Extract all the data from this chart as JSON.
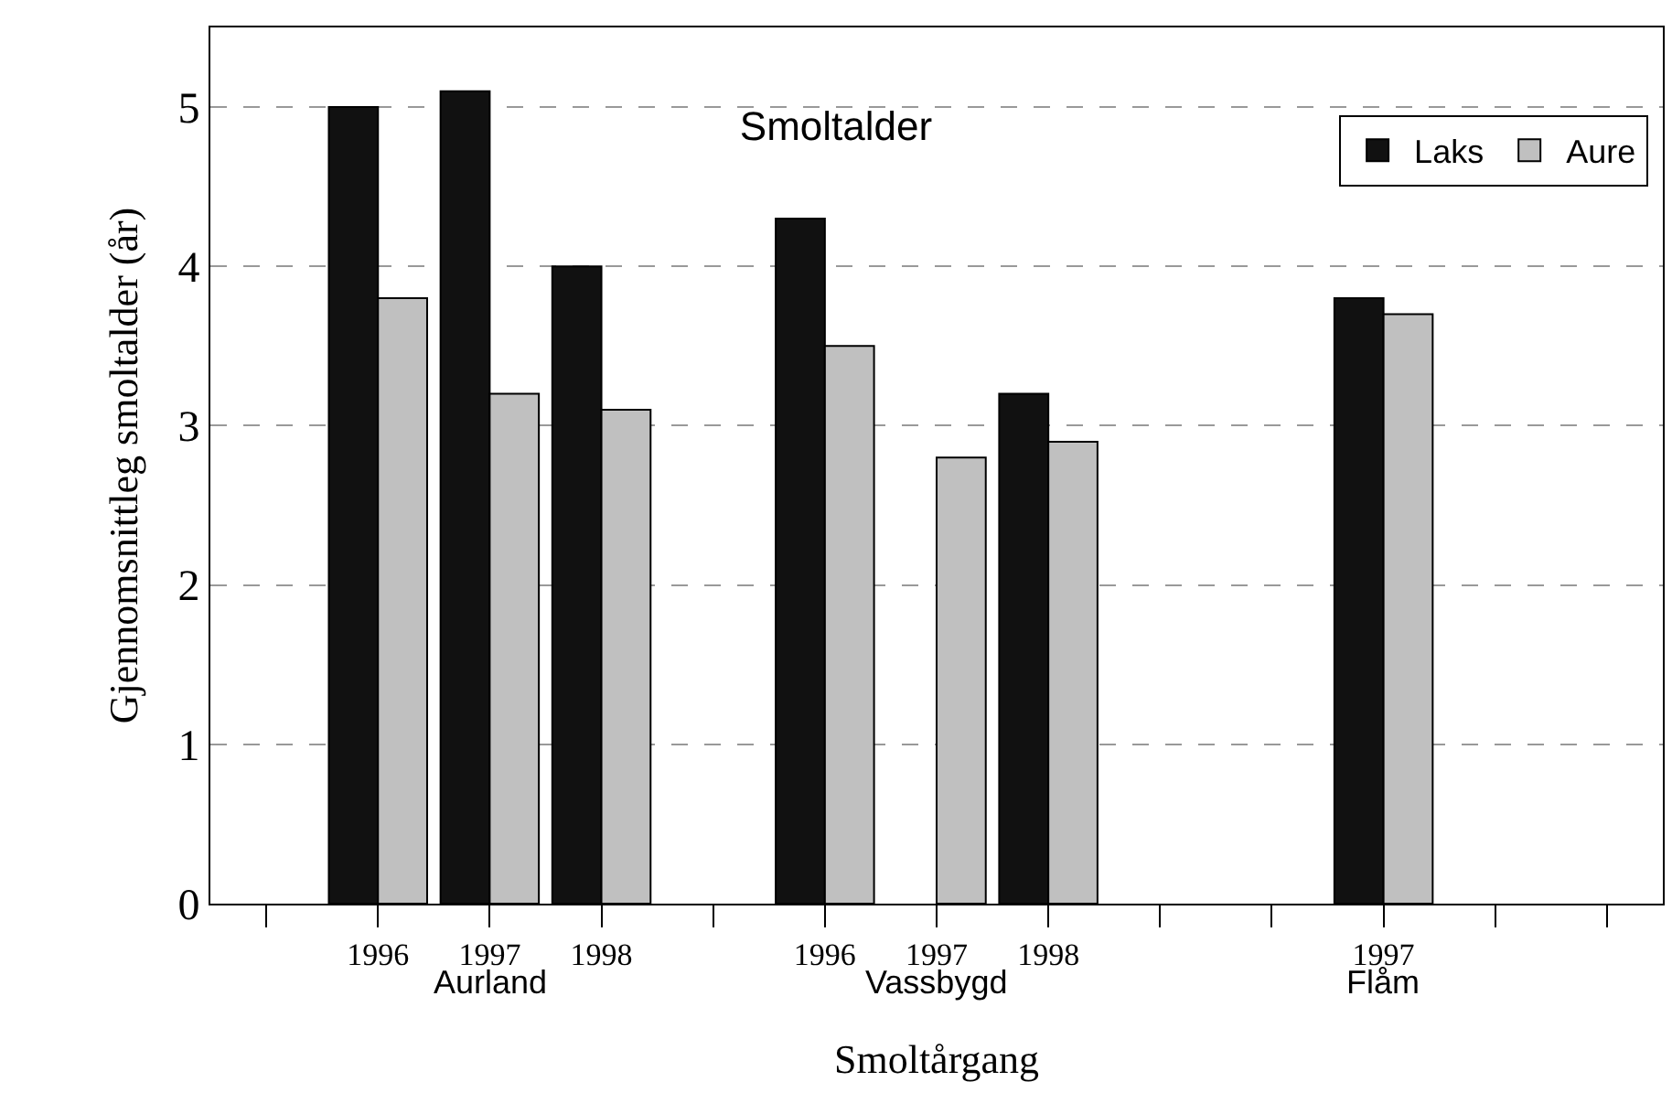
{
  "chart_data": {
    "type": "bar",
    "title": "Smoltalder",
    "xlabel": "Smoltårgang",
    "ylabel": "Gjennomsnittleg smoltalder (år)",
    "categories": [
      null,
      "1996",
      "1997",
      "1998",
      null,
      "1996",
      "1997",
      "1998",
      null,
      null,
      "1997",
      null,
      null
    ],
    "series": [
      {
        "name": "Laks",
        "color": "#111111",
        "values": [
          null,
          5.0,
          5.1,
          4.0,
          null,
          4.3,
          null,
          3.2,
          null,
          null,
          3.8,
          null,
          null
        ]
      },
      {
        "name": "Aure",
        "color": "#c0c0c0",
        "values": [
          null,
          3.8,
          3.2,
          3.1,
          null,
          3.5,
          2.8,
          2.9,
          null,
          null,
          3.7,
          null,
          null
        ]
      }
    ],
    "annotations": [
      "Aurland",
      "Vassbygd",
      "Flåm"
    ],
    "ylim": [
      0,
      5.5
    ],
    "yticks": [
      0,
      1,
      2,
      3,
      4,
      5
    ],
    "grid": "y",
    "legend": "top right"
  }
}
